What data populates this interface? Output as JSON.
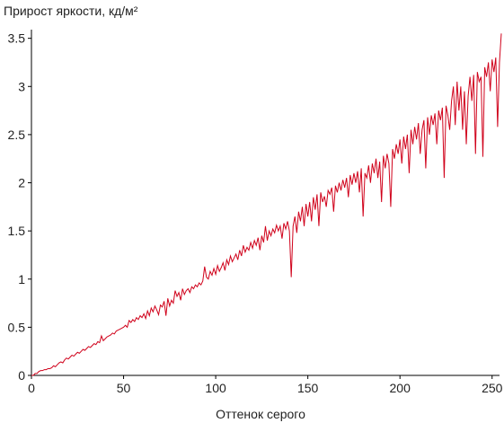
{
  "chart_data": {
    "type": "line",
    "title": "Прирост яркости, кд/м²",
    "x_label": "Оттенок серого",
    "xlim": [
      0,
      255
    ],
    "xticks": [
      0,
      50,
      100,
      150,
      200,
      250
    ],
    "ylim": [
      0,
      3.59
    ],
    "yticks": [
      0,
      0.5,
      1,
      1.5,
      2,
      2.5,
      3,
      3.5
    ],
    "grid": false,
    "series": [
      {
        "color": "#d0021b",
        "values": [
          0,
          0,
          0.02,
          0.02,
          0.04,
          0.05,
          0.05,
          0.06,
          0.06,
          0.07,
          0.07,
          0.08,
          0.1,
          0.09,
          0.11,
          0.13,
          0.14,
          0.13,
          0.16,
          0.18,
          0.17,
          0.19,
          0.21,
          0.2,
          0.22,
          0.24,
          0.23,
          0.25,
          0.27,
          0.26,
          0.28,
          0.3,
          0.29,
          0.31,
          0.33,
          0.32,
          0.35,
          0.34,
          0.41,
          0.36,
          0.38,
          0.4,
          0.41,
          0.42,
          0.44,
          0.43,
          0.46,
          0.47,
          0.48,
          0.49,
          0.5,
          0.52,
          0.5,
          0.57,
          0.55,
          0.58,
          0.56,
          0.6,
          0.58,
          0.62,
          0.6,
          0.64,
          0.59,
          0.67,
          0.62,
          0.7,
          0.66,
          0.72,
          0.68,
          0.63,
          0.73,
          0.71,
          0.77,
          0.62,
          0.8,
          0.72,
          0.78,
          0.75,
          0.88,
          0.82,
          0.86,
          0.78,
          0.9,
          0.84,
          0.88,
          0.9,
          0.86,
          0.92,
          0.9,
          0.94,
          0.92,
          0.96,
          0.94,
          0.98,
          1.13,
          1.02,
          1.0,
          1.08,
          1.04,
          1.11,
          1.05,
          1.14,
          1.08,
          1.12,
          1.17,
          1.09,
          1.2,
          1.15,
          1.24,
          1.18,
          1.22,
          1.26,
          1.2,
          1.3,
          1.24,
          1.35,
          1.28,
          1.33,
          1.3,
          1.38,
          1.32,
          1.4,
          1.35,
          1.43,
          1.3,
          1.45,
          1.38,
          1.55,
          1.4,
          1.5,
          1.45,
          1.52,
          1.48,
          1.56,
          1.5,
          1.55,
          1.42,
          1.58,
          1.52,
          1.6,
          1.5,
          1.02,
          1.55,
          1.65,
          1.48,
          1.7,
          1.6,
          1.75,
          1.55,
          1.78,
          1.65,
          1.8,
          1.6,
          1.85,
          1.72,
          1.88,
          1.55,
          1.9,
          1.8,
          1.86,
          1.75,
          1.92,
          1.88,
          1.95,
          1.7,
          1.97,
          1.9,
          2.0,
          1.92,
          2.03,
          1.95,
          2.05,
          1.85,
          2.08,
          1.98,
          2.1,
          2.0,
          2.12,
          1.9,
          2.15,
          1.65,
          2.1,
          2.05,
          2.18,
          2.0,
          2.2,
          2.1,
          2.25,
          2.05,
          2.22,
          1.8,
          2.28,
          2.15,
          2.3,
          2.2,
          1.75,
          2.35,
          2.25,
          2.4,
          2.3,
          2.45,
          2.2,
          2.48,
          2.35,
          2.5,
          2.1,
          2.55,
          2.4,
          2.58,
          2.45,
          2.62,
          2.3,
          2.55,
          2.65,
          2.15,
          2.68,
          2.5,
          2.7,
          2.6,
          2.72,
          2.4,
          2.75,
          2.65,
          2.78,
          2.05,
          2.8,
          2.7,
          2.55,
          2.85,
          3.0,
          2.6,
          3.05,
          2.75,
          3.0,
          2.55,
          2.95,
          2.4,
          2.9,
          3.1,
          2.85,
          3.12,
          2.3,
          3.15,
          3.05,
          3.1,
          2.27,
          3.2,
          3.1,
          3.25,
          2.95,
          3.28,
          3.15,
          3.3,
          2.58,
          3.25,
          3.55
        ]
      }
    ]
  }
}
